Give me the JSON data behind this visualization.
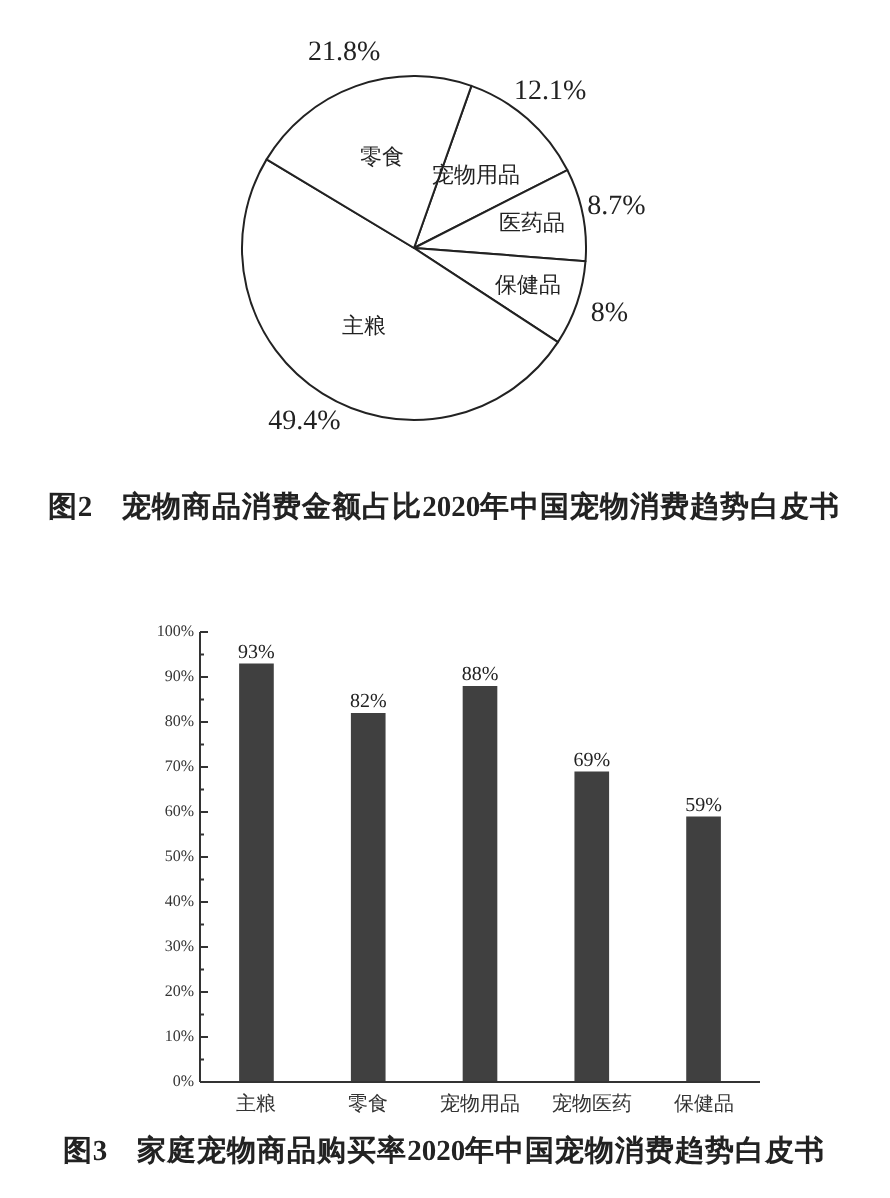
{
  "chart_data": [
    {
      "type": "pie",
      "title": "图2　宠物商品消费金额占比2020年中国宠物消费趋势白皮书",
      "categories": [
        "宠物用品",
        "医药品",
        "保健品",
        "主粮",
        "零食"
      ],
      "values": [
        12.1,
        8.7,
        8,
        49.4,
        21.8
      ],
      "colors": [
        "#ffffff",
        "#ffffff",
        "#ffffff",
        "#ffffff",
        "#ffffff"
      ],
      "value_labels": [
        "12.1%",
        "8.7%",
        "8%",
        "49.4%",
        "21.8%"
      ]
    },
    {
      "type": "bar",
      "title": "图3　家庭宠物商品购买率2020年中国宠物消费趋势白皮书",
      "categories": [
        "主粮",
        "零食",
        "宠物用品",
        "宠物医药",
        "保健品"
      ],
      "values": [
        93,
        82,
        88,
        69,
        59
      ],
      "color": "#404040",
      "value_labels": [
        "93%",
        "82%",
        "88%",
        "69%",
        "59%"
      ],
      "ylim": [
        0,
        100
      ],
      "yticks": [
        {
          "value": 0,
          "label": "0%"
        },
        {
          "value": 5,
          "label": null
        },
        {
          "value": 10,
          "label": "10%"
        },
        {
          "value": 15,
          "label": null
        },
        {
          "value": 20,
          "label": "20%"
        },
        {
          "value": 25,
          "label": null
        },
        {
          "value": 30,
          "label": "30%"
        },
        {
          "value": 35,
          "label": null
        },
        {
          "value": 40,
          "label": "40%"
        },
        {
          "value": 45,
          "label": null
        },
        {
          "value": 50,
          "label": "50%"
        },
        {
          "value": 55,
          "label": null
        },
        {
          "value": 60,
          "label": "60%"
        },
        {
          "value": 65,
          "label": null
        },
        {
          "value": 70,
          "label": "70%"
        },
        {
          "value": 75,
          "label": null
        },
        {
          "value": 80,
          "label": "80%"
        },
        {
          "value": 85,
          "label": null
        },
        {
          "value": 90,
          "label": "90%"
        },
        {
          "value": 95,
          "label": null
        },
        {
          "value": 100,
          "label": "100%"
        }
      ]
    }
  ]
}
